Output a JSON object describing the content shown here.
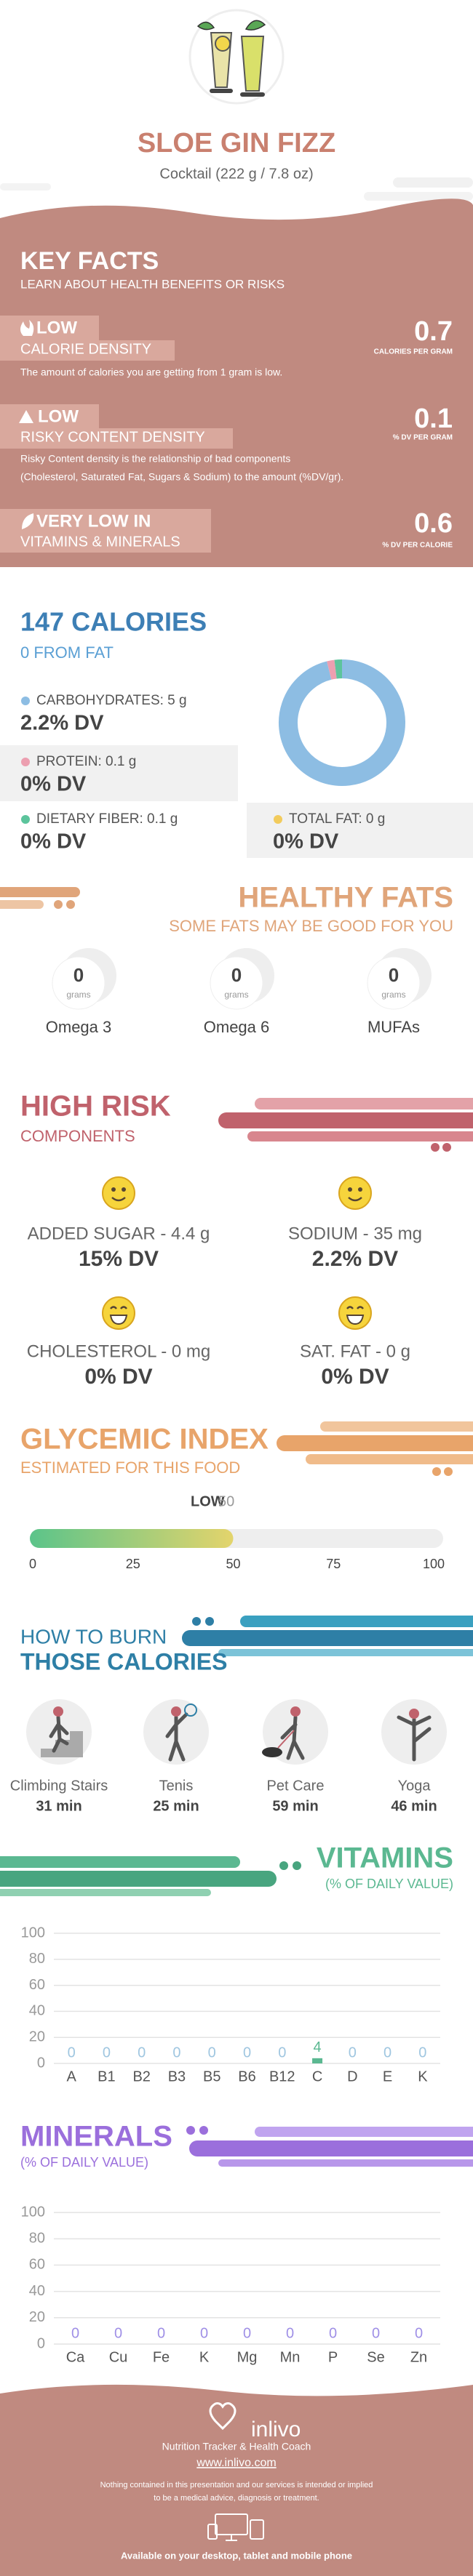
{
  "header": {
    "title": "SLOE GIN FIZZ",
    "subtitle": "Cocktail (222 g / 7.8 oz)"
  },
  "key_facts": {
    "title": "KEY FACTS",
    "subtitle": "LEARN ABOUT HEALTH BENEFITS OR RISKS",
    "items": [
      {
        "level": "LOW",
        "title": "CALORIE DENSITY",
        "value": 0.7,
        "unit": "CALORIES PER GRAM",
        "description": [
          "The amount of calories you are getting from 1 gram is low."
        ]
      },
      {
        "level": "LOW",
        "title": "RISKY CONTENT DENSITY",
        "value": 0.1,
        "unit": "% DV PER GRAM",
        "description": [
          "Risky Content density is the relationship of bad components",
          "(Cholesterol, Saturated Fat, Sugars & Sodium) to the amount (%DV/gr)."
        ]
      },
      {
        "level": "VERY LOW  IN",
        "title": "VITAMINS & MINERALS",
        "value": 0.6,
        "unit": "% DV PER CALORIE",
        "description": []
      }
    ]
  },
  "calories": {
    "title": "147 CALORIES",
    "subtitle": "0 FROM FAT",
    "nutrients": [
      {
        "label": "CARBOHYDRATES: 5 g",
        "dv": "2.2% DV"
      },
      {
        "label": "PROTEIN: 0.1 g",
        "dv": "0% DV"
      },
      {
        "label": "DIETARY FIBER: 0.1 g",
        "dv": "0% DV"
      },
      {
        "label": "TOTAL FAT: 0 g",
        "dv": "0% DV"
      }
    ]
  },
  "healthy_fats": {
    "title": "HEALTHY FATS",
    "subtitle": "SOME FATS MAY BE GOOD FOR YOU",
    "items": [
      {
        "amount": 0,
        "unit": "grams",
        "name": "Omega 3"
      },
      {
        "amount": 0,
        "unit": "grams",
        "name": "Omega 6"
      },
      {
        "amount": 0,
        "unit": "grams",
        "name": "MUFAs"
      }
    ]
  },
  "high_risk": {
    "title": "HIGH RISK",
    "subtitle": "COMPONENTS",
    "items": [
      {
        "label": "ADDED SUGAR - 4.4 g",
        "dv": "15% DV"
      },
      {
        "label": "SODIUM - 35 mg",
        "dv": "2.2% DV"
      },
      {
        "label": "CHOLESTEROL - 0 mg",
        "dv": "0% DV"
      },
      {
        "label": "SAT. FAT - 0 g",
        "dv": "0% DV"
      }
    ]
  },
  "burn": {
    "title_line1": "HOW TO BURN",
    "title_line2": "THOSE CALORIES",
    "activities": [
      {
        "name": "Climbing Stairs",
        "time": "31 min"
      },
      {
        "name": "Tenis",
        "time": "25 min"
      },
      {
        "name": "Pet Care",
        "time": "59 min"
      },
      {
        "name": "Yoga",
        "time": "46 min"
      }
    ]
  },
  "footer": {
    "brand": "inlivo",
    "tagline": "Nutrition Tracker & Health Coach",
    "url": "www.inlivo.com",
    "disclaimer": [
      "Nothing contained in this presentation and our services is intended or implied",
      "to be a medical advice, diagnosis or treatment."
    ],
    "availability": "Available on your desktop, tablet and mobile phone"
  },
  "chart_data": [
    {
      "type": "pie",
      "values": [
        5,
        0.1,
        0.1,
        0
      ],
      "colors": [
        "#8dbde3",
        "#ec9fb0",
        "#5cc49c",
        "#f2cb5c"
      ]
    },
    {
      "type": "gauge",
      "title": "GLYCEMIC INDEX",
      "subtitle": "ESTIMATED FOR THIS FOOD",
      "rating": "LOW",
      "value": 50,
      "xlim": [
        0,
        100
      ],
      "xticks": [
        0,
        25,
        50,
        75,
        100
      ],
      "colors": [
        "#5bc48a",
        "#e3d46c"
      ]
    },
    {
      "type": "bar",
      "title": "VITAMINS",
      "subtitle": "(% OF DAILY VALUE)",
      "categories": [
        "A",
        "B1",
        "B2",
        "B3",
        "B5",
        "B6",
        "B12",
        "C",
        "D",
        "E",
        "K"
      ],
      "values": [
        0,
        0,
        0,
        0,
        0,
        0,
        0,
        4,
        0,
        0,
        0
      ],
      "color": "#5bb891",
      "zero_label_color": "#9fc6e0",
      "ylim": [
        0,
        100
      ],
      "yticks": [
        0,
        20,
        40,
        60,
        80,
        100
      ],
      "grid": true
    },
    {
      "type": "bar",
      "title": "MINERALS",
      "subtitle": "(% OF DAILY VALUE)",
      "categories": [
        "Ca",
        "Cu",
        "Fe",
        "K",
        "Mg",
        "Mn",
        "P",
        "Se",
        "Zn"
      ],
      "values": [
        0,
        0,
        0,
        0,
        0,
        0,
        0,
        0,
        0
      ],
      "color": "#9b6fdc",
      "zero_label_color": "#9f8fe6",
      "ylim": [
        0,
        100
      ],
      "yticks": [
        0,
        20,
        40,
        60,
        80,
        100
      ],
      "grid": true
    }
  ]
}
